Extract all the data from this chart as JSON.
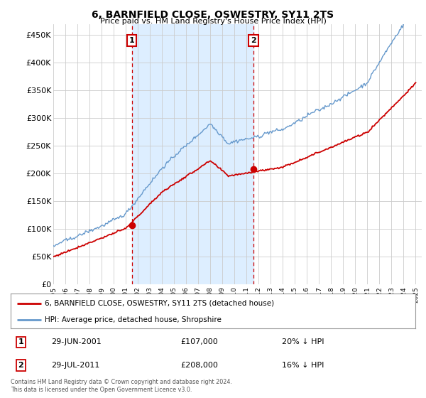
{
  "title": "6, BARNFIELD CLOSE, OSWESTRY, SY11 2TS",
  "subtitle": "Price paid vs. HM Land Registry's House Price Index (HPI)",
  "ylabel_ticks": [
    "£0",
    "£50K",
    "£100K",
    "£150K",
    "£200K",
    "£250K",
    "£300K",
    "£350K",
    "£400K",
    "£450K"
  ],
  "ytick_values": [
    0,
    50000,
    100000,
    150000,
    200000,
    250000,
    300000,
    350000,
    400000,
    450000
  ],
  "ylim": [
    0,
    470000
  ],
  "xlim_start": 1995.0,
  "xlim_end": 2025.5,
  "marker1_x": 2001.5,
  "marker1_y": 107000,
  "marker2_x": 2011.58,
  "marker2_y": 208000,
  "legend_label_red": "6, BARNFIELD CLOSE, OSWESTRY, SY11 2TS (detached house)",
  "legend_label_blue": "HPI: Average price, detached house, Shropshire",
  "table_row1": [
    "1",
    "29-JUN-2001",
    "£107,000",
    "20% ↓ HPI"
  ],
  "table_row2": [
    "2",
    "29-JUL-2011",
    "£208,000",
    "16% ↓ HPI"
  ],
  "footer": "Contains HM Land Registry data © Crown copyright and database right 2024.\nThis data is licensed under the Open Government Licence v3.0.",
  "red_color": "#cc0000",
  "blue_color": "#6699cc",
  "shade_color": "#ddeeff",
  "marker_box_color": "#cc0000",
  "background_color": "#ffffff",
  "grid_color": "#cccccc"
}
